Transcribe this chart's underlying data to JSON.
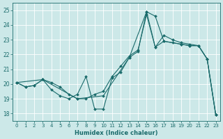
{
  "xlabel": "Humidex (Indice chaleur)",
  "xlim": [
    -0.5,
    23.5
  ],
  "ylim": [
    17.5,
    25.5
  ],
  "yticks": [
    18,
    19,
    20,
    21,
    22,
    23,
    24,
    25
  ],
  "xticks": [
    0,
    1,
    2,
    3,
    4,
    5,
    6,
    7,
    8,
    9,
    10,
    11,
    12,
    13,
    14,
    15,
    16,
    17,
    18,
    19,
    20,
    21,
    22,
    23
  ],
  "bg_color": "#cce8e8",
  "line_color": "#1a6b6b",
  "grid_color": "#ffffff",
  "lines": [
    {
      "x": [
        0,
        1,
        2,
        3,
        4,
        5,
        6,
        7,
        8,
        9,
        10,
        11,
        12,
        13,
        14,
        15,
        16,
        17,
        18,
        19,
        20,
        21,
        22,
        23
      ],
      "y": [
        20.1,
        19.8,
        19.9,
        20.3,
        19.6,
        19.2,
        19.0,
        19.3,
        20.5,
        18.3,
        18.3,
        20.4,
        20.8,
        21.8,
        22.2,
        24.9,
        24.6,
        22.9,
        22.8,
        22.7,
        22.6,
        22.6,
        21.7,
        17.9
      ]
    },
    {
      "x": [
        0,
        1,
        2,
        3,
        4,
        5,
        6,
        7,
        8,
        9,
        10,
        11,
        12,
        13,
        14,
        15,
        16,
        17,
        18,
        19,
        20,
        21,
        22,
        23
      ],
      "y": [
        20.1,
        19.8,
        19.9,
        20.3,
        20.1,
        19.8,
        19.3,
        19.0,
        19.0,
        19.3,
        19.5,
        20.5,
        21.2,
        21.9,
        22.3,
        24.7,
        22.5,
        23.3,
        23.0,
        22.8,
        22.7,
        22.6,
        21.7,
        17.9
      ]
    },
    {
      "x": [
        0,
        3,
        7,
        10,
        13,
        15,
        16,
        17,
        19,
        20,
        21,
        22,
        23
      ],
      "y": [
        20.1,
        20.3,
        19.0,
        19.2,
        21.8,
        24.9,
        22.5,
        22.9,
        22.7,
        22.6,
        22.6,
        21.7,
        17.9
      ]
    }
  ]
}
